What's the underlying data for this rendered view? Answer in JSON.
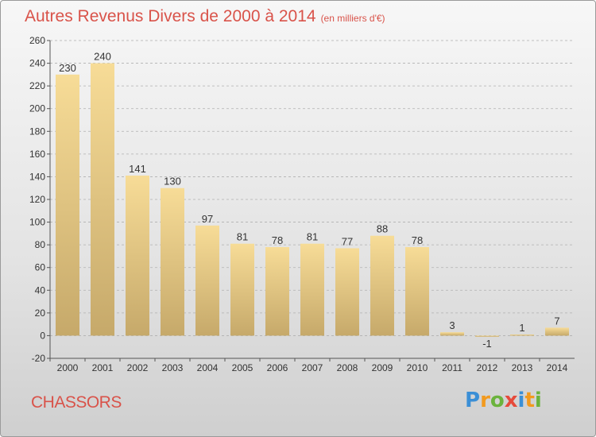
{
  "header": {
    "title": "Autres Revenus Divers de 2000 à 2014",
    "subtitle": "(en milliers d'€)"
  },
  "footer": {
    "commune": "CHASSORS",
    "logo_letters": [
      "P",
      "r",
      "o",
      "x",
      "i",
      "t",
      "i"
    ],
    "logo_colors": [
      "#3b8fd6",
      "#f29a1e",
      "#6bb33d",
      "#e64a3b",
      "#3b8fd6",
      "#f29a1e",
      "#6bb33d"
    ]
  },
  "colors": {
    "title": "#d9534a",
    "bar_light": "#f6dd9a",
    "bar_dark": "#c9ad6c",
    "grid": "#b0b0b0"
  },
  "chart_data": {
    "type": "bar",
    "title": "Autres Revenus Divers de 2000 à 2014",
    "xlabel": "",
    "ylabel": "",
    "categories": [
      "2000",
      "2001",
      "2002",
      "2003",
      "2004",
      "2005",
      "2006",
      "2007",
      "2008",
      "2009",
      "2010",
      "2011",
      "2012",
      "2013",
      "2014"
    ],
    "values": [
      230,
      240,
      141,
      130,
      97,
      81,
      78,
      81,
      77,
      88,
      78,
      3,
      -1,
      1,
      7
    ],
    "ylim": [
      -20,
      260
    ],
    "yticks": [
      -20,
      0,
      20,
      40,
      60,
      80,
      100,
      120,
      140,
      160,
      180,
      200,
      220,
      240,
      260
    ],
    "grid": "horizontal dashed",
    "data_labels": true
  }
}
